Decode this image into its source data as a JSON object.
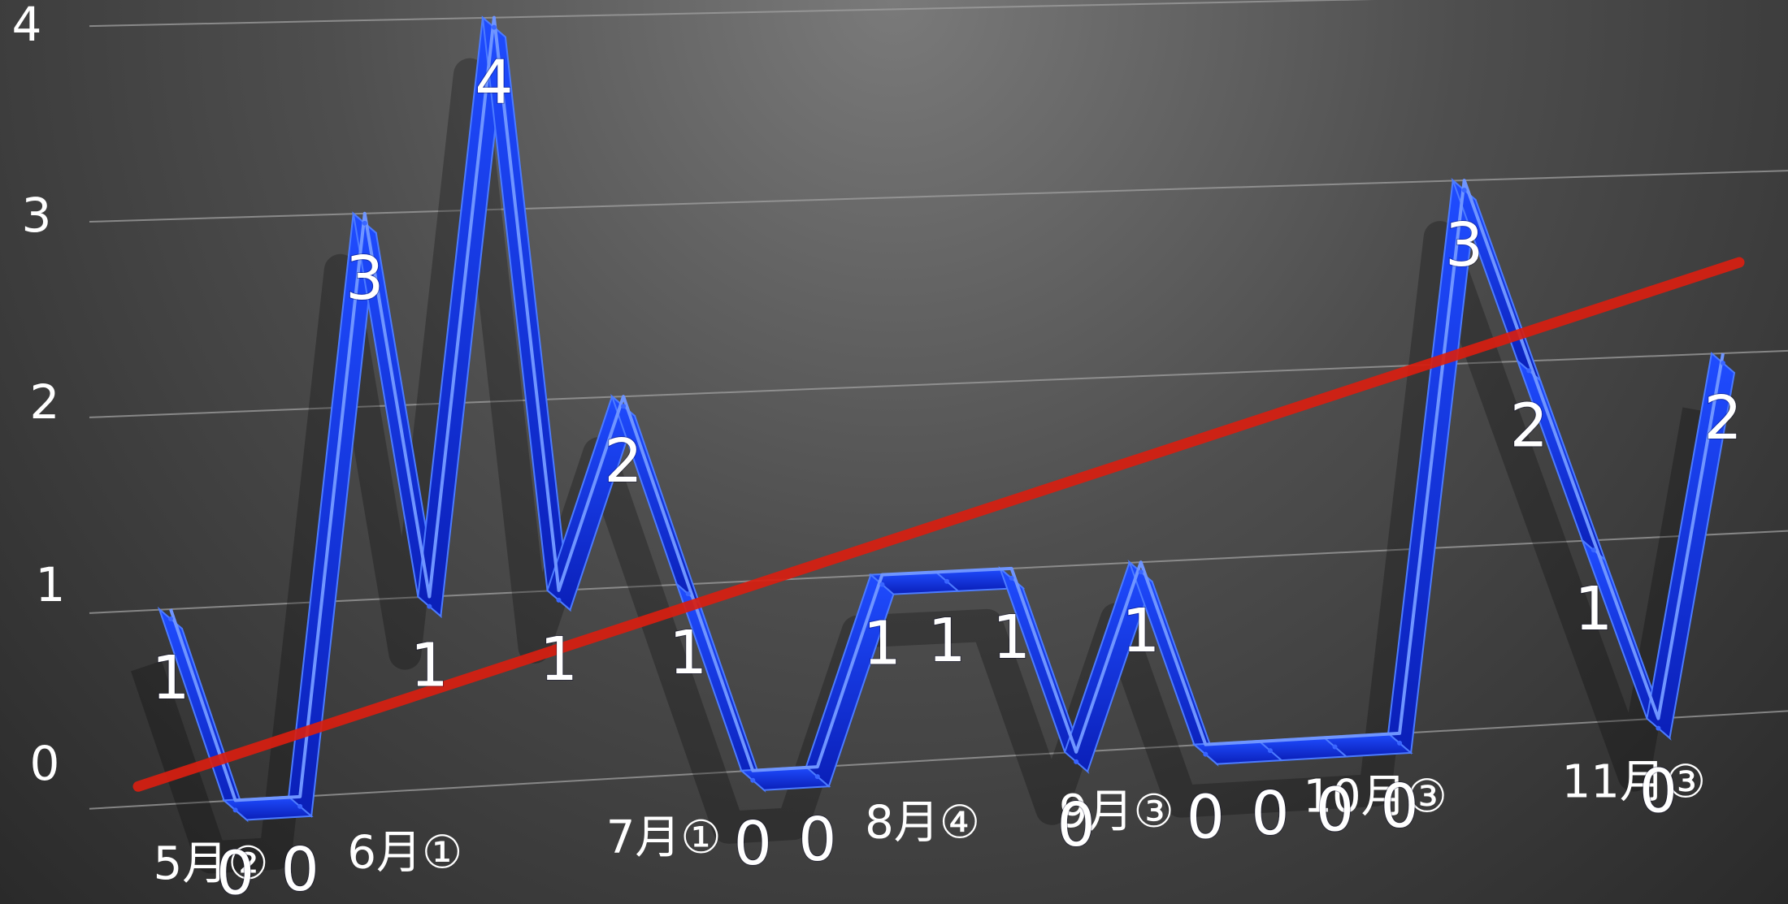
{
  "chart_data": {
    "type": "line",
    "y_ticks": [
      "0",
      "1",
      "2",
      "3",
      "4"
    ],
    "ylim": [
      0,
      4
    ],
    "grid": true,
    "x_labels": [
      "5月②",
      "6月①",
      "7月①",
      "8月④",
      "9月③",
      "10月③",
      "11月③"
    ],
    "x_label_index": [
      1,
      4,
      8,
      12,
      15,
      19,
      23
    ],
    "series": [
      {
        "values": [
          1,
          0,
          0,
          3,
          1,
          4,
          1,
          2,
          1,
          0,
          0,
          1,
          1,
          1,
          0,
          1,
          0,
          0,
          0,
          0,
          3,
          2,
          1,
          0,
          2
        ]
      }
    ],
    "value_labels": [
      "1",
      "0",
      "0",
      "3",
      "1",
      "4",
      "1",
      "2",
      "1",
      "0",
      "0",
      "1",
      "1",
      "1",
      "0",
      "1",
      "0",
      "0",
      "0",
      "0",
      "3",
      "2",
      "1",
      "0",
      "2"
    ],
    "trendline": {
      "start": 0.1,
      "end": 2.5
    },
    "colors": {
      "series": "#1434d8",
      "trend": "#d81e10",
      "grid": "#a0a0a0",
      "text": "#ffffff"
    }
  }
}
